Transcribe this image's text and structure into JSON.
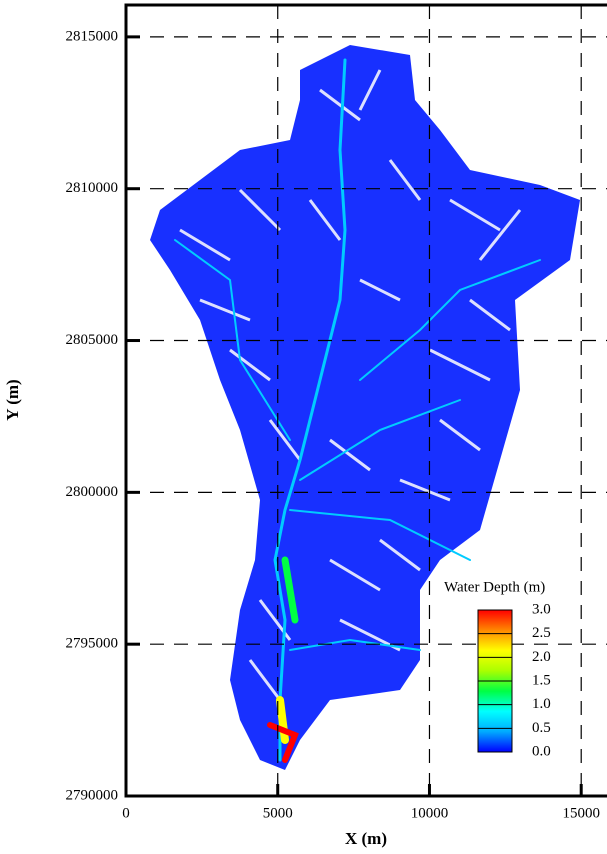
{
  "chart_data": {
    "type": "contour",
    "x_label": "X (m)",
    "y_label": "Y (m)",
    "xlim": [
      0,
      15850
    ],
    "ylim": [
      2790000,
      2816050
    ],
    "xticks": [
      0,
      5000,
      10000,
      15000
    ],
    "yticks": [
      2790000,
      2795000,
      2800000,
      2805000,
      2810000,
      2815000
    ],
    "grid": true,
    "colorbar": {
      "title": "Water Depth (m)",
      "lim": [
        0,
        3
      ],
      "ticks": [
        {
          "value": 0,
          "label": "0.0"
        },
        {
          "value": 0.5,
          "label": "0.5"
        },
        {
          "value": 1,
          "label": "1.0"
        },
        {
          "value": 1.5,
          "label": "1.5"
        },
        {
          "value": 2,
          "label": "2.0"
        },
        {
          "value": 2.5,
          "label": "2.5"
        },
        {
          "value": 3,
          "label": "3.0"
        }
      ],
      "colors": [
        "#0000ff",
        "#00aaff",
        "#00ffff",
        "#00ff44",
        "#aaff00",
        "#ffff00",
        "#ff8800",
        "#ff0000"
      ]
    }
  }
}
